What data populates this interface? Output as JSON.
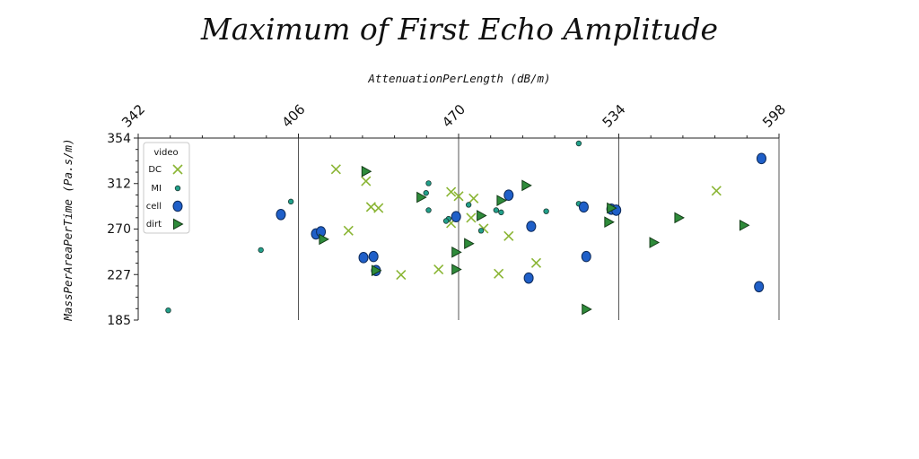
{
  "chart_data": {
    "type": "scatter",
    "title": "Maximum of First Echo Amplitude",
    "xlabel": "AttenuationPerLength (dB/m)",
    "ylabel": "MassPerAreaPerTime (Pa.s/m)",
    "x_ticks": [
      "342",
      "406",
      "470",
      "534",
      "598"
    ],
    "y_ticks": [
      "354",
      "312",
      "270",
      "227",
      "185"
    ],
    "x_tick_values": [
      342,
      406,
      470,
      534,
      598
    ],
    "y_tick_values": [
      354,
      312,
      270,
      227,
      185
    ],
    "xlim": [
      342,
      598
    ],
    "ylim": [
      185,
      354
    ],
    "grid": "vertical lines at major x ticks",
    "x_axis_position": "top",
    "legend": {
      "title": "video",
      "placement": "top-left",
      "entries": [
        "DC",
        "MI",
        "cell",
        "dirt"
      ]
    },
    "series": [
      {
        "name": "DC",
        "marker": "x",
        "color": "#8ab534",
        "points": [
          [
            421,
            325
          ],
          [
            433,
            314
          ],
          [
            435,
            290
          ],
          [
            438,
            289
          ],
          [
            467,
            304
          ],
          [
            470,
            300
          ],
          [
            476,
            298
          ],
          [
            475,
            280
          ],
          [
            480,
            270
          ],
          [
            490,
            263
          ],
          [
            501,
            238
          ],
          [
            486,
            228
          ],
          [
            462,
            232
          ],
          [
            426,
            268
          ],
          [
            447,
            227
          ],
          [
            573,
            305
          ],
          [
            467,
            275
          ]
        ]
      },
      {
        "name": "MI",
        "marker": "small-circle",
        "color": "#22a08a",
        "points": [
          [
            354,
            194
          ],
          [
            391,
            250
          ],
          [
            403,
            295
          ],
          [
            458,
            312
          ],
          [
            457,
            303
          ],
          [
            458,
            287
          ],
          [
            466,
            279
          ],
          [
            465,
            277
          ],
          [
            474,
            292
          ],
          [
            479,
            268
          ],
          [
            485,
            287
          ],
          [
            487,
            285
          ],
          [
            505,
            286
          ],
          [
            518,
            349
          ],
          [
            518,
            293
          ]
        ]
      },
      {
        "name": "cell",
        "marker": "large-circle",
        "color": "#1f5fc8",
        "points": [
          [
            399,
            283
          ],
          [
            413,
            265
          ],
          [
            415,
            267
          ],
          [
            432,
            243
          ],
          [
            436,
            244
          ],
          [
            437,
            231
          ],
          [
            469,
            281
          ],
          [
            490,
            301
          ],
          [
            499,
            272
          ],
          [
            498,
            224
          ],
          [
            520,
            290
          ],
          [
            521,
            244
          ],
          [
            531,
            288
          ],
          [
            533,
            287
          ],
          [
            591,
            335
          ],
          [
            590,
            216
          ]
        ]
      },
      {
        "name": "dirt",
        "marker": "triangle-right",
        "color": "#2e8b3a",
        "points": [
          [
            433,
            323
          ],
          [
            455,
            299
          ],
          [
            416,
            260
          ],
          [
            437,
            231
          ],
          [
            469,
            248
          ],
          [
            469,
            232
          ],
          [
            474,
            256
          ],
          [
            479,
            282
          ],
          [
            487,
            296
          ],
          [
            497,
            310
          ],
          [
            521,
            195
          ],
          [
            530,
            276
          ],
          [
            531,
            289
          ],
          [
            548,
            257
          ],
          [
            558,
            280
          ],
          [
            584,
            273
          ]
        ]
      }
    ]
  }
}
